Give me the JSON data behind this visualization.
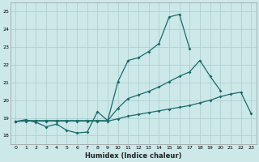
{
  "bg_color": "#cce8e8",
  "grid_color": "#aacccc",
  "line_color": "#1a6b6b",
  "xlabel": "Humidex (Indice chaleur)",
  "xlim": [
    -0.5,
    23.5
  ],
  "ylim": [
    17.5,
    25.5
  ],
  "yticks": [
    18,
    19,
    20,
    21,
    22,
    23,
    24,
    25
  ],
  "xticks": [
    0,
    1,
    2,
    3,
    4,
    5,
    6,
    7,
    8,
    9,
    10,
    11,
    12,
    13,
    14,
    15,
    16,
    17,
    18,
    19,
    20,
    21,
    22,
    23
  ],
  "line1_y": [
    18.8,
    18.9,
    18.75,
    18.5,
    18.65,
    18.3,
    18.15,
    18.2,
    19.35,
    18.85,
    21.05,
    22.25,
    22.4,
    22.75,
    23.2,
    24.7,
    24.85,
    22.9
  ],
  "line2_y": [
    18.8,
    18.85,
    18.85,
    18.85,
    18.85,
    18.85,
    18.85,
    18.85,
    18.85,
    18.85,
    19.55,
    20.1,
    20.3,
    20.5,
    20.75,
    21.05,
    21.35,
    21.6,
    22.25,
    21.35,
    20.55
  ],
  "line3_y": [
    18.8,
    18.82,
    18.82,
    18.82,
    18.82,
    18.82,
    18.82,
    18.82,
    18.82,
    18.82,
    18.95,
    19.1,
    19.2,
    19.3,
    19.4,
    19.5,
    19.6,
    19.7,
    19.85,
    20.0,
    20.2,
    20.35,
    20.45,
    19.25
  ]
}
